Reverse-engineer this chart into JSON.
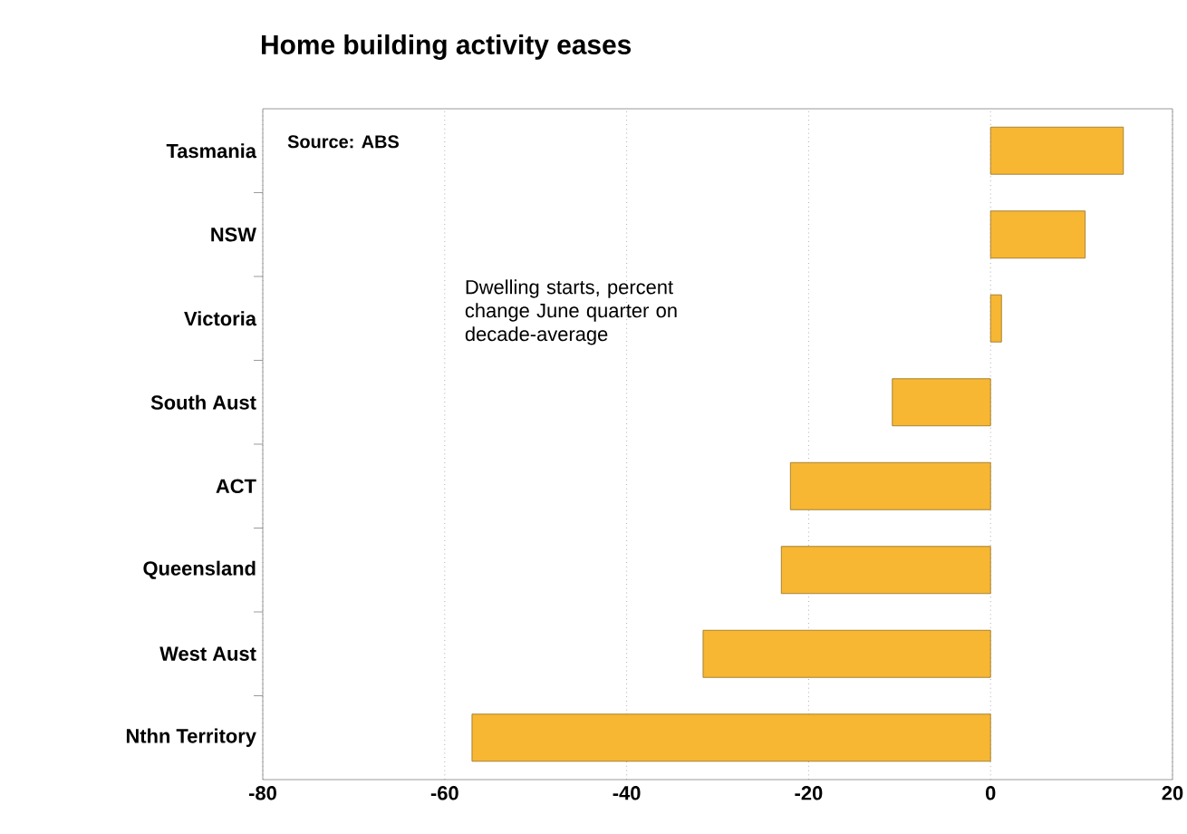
{
  "chart_data": {
    "type": "bar",
    "orientation": "horizontal",
    "title": "Home building activity eases",
    "categories": [
      "Tasmania",
      "NSW",
      "Victoria",
      "South Aust",
      "ACT",
      "Queensland",
      "West Aust",
      "Nthn Territory"
    ],
    "values": [
      14.6,
      10.4,
      1.2,
      -10.8,
      -22,
      -23,
      -31.6,
      -57
    ],
    "color": "#f7b733",
    "xlim": [
      -80,
      20
    ],
    "xticks": [
      -80,
      -60,
      -40,
      -20,
      0,
      20
    ],
    "grid": "x",
    "annotations": [
      "Source: ABS",
      "Dwelling starts, percent change June quarter on decade-average"
    ]
  }
}
